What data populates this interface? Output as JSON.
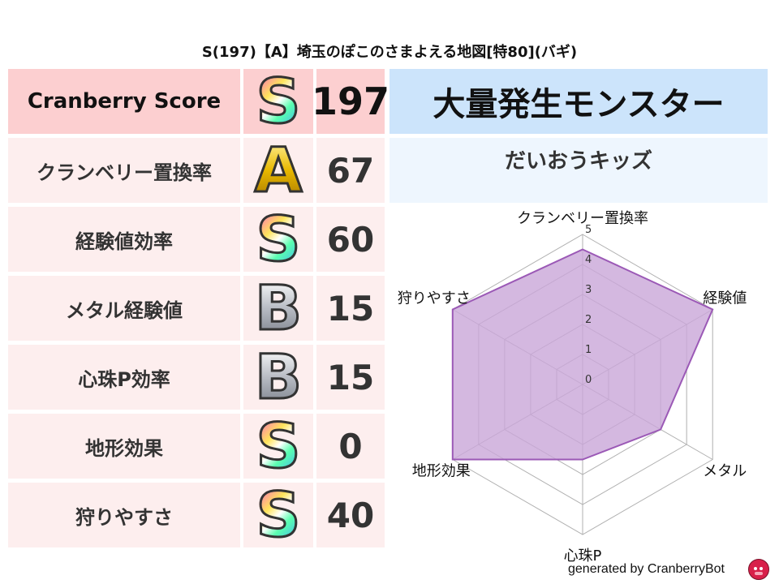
{
  "title": "S(197)【A】埼玉のぽこのさまよえる地図[特80](バギ)",
  "table": {
    "header": {
      "label": "Cranberry Score",
      "rank": "S",
      "score": "197"
    },
    "rows": [
      {
        "label": "クランベリー置換率",
        "rank": "A",
        "score": "67"
      },
      {
        "label": "経験値効率",
        "rank": "S",
        "score": "60"
      },
      {
        "label": "メタル経験値",
        "rank": "B",
        "score": "15"
      },
      {
        "label": "心珠P効率",
        "rank": "B",
        "score": "15"
      },
      {
        "label": "地形効果",
        "rank": "S",
        "score": "0"
      },
      {
        "label": "狩りやすさ",
        "rank": "S",
        "score": "40"
      }
    ]
  },
  "right": {
    "heading": "大量発生モンスター",
    "monster": "だいおうキッズ"
  },
  "chart_data": {
    "type": "radar",
    "axes": [
      "クランベリー置換率",
      "経験値",
      "メタル",
      "心珠P",
      "地形効果",
      "狩りやすさ"
    ],
    "values": [
      4.5,
      5,
      3,
      2.5,
      5,
      5
    ],
    "ticks": [
      "0",
      "1",
      "2",
      "3",
      "4",
      "5"
    ],
    "range": [
      0,
      5
    ],
    "grid": true,
    "fill_color": "#c9a6d8",
    "line_color": "#9b59b6"
  },
  "footer": "generated by CranberryBot",
  "colors": {
    "header_pink": "#fccfd0",
    "row_pink": "#fdeeee",
    "heading_blue": "#cce4fb",
    "subheading_blue": "#eef6fe"
  }
}
